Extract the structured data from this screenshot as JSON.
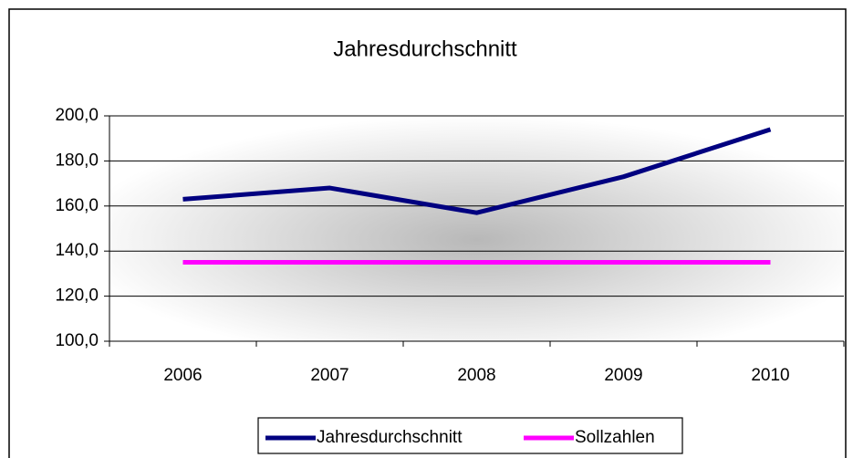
{
  "chart_data": {
    "type": "line",
    "title": "Jahresdurchschnitt",
    "categories": [
      "2006",
      "2007",
      "2008",
      "2009",
      "2010"
    ],
    "series": [
      {
        "name": "Jahresdurchschnitt",
        "color": "#000080",
        "values": [
          163,
          168,
          157,
          173,
          194
        ]
      },
      {
        "name": "Sollzahlen",
        "color": "#ff00ff",
        "values": [
          135,
          135,
          135,
          135,
          135
        ]
      }
    ],
    "ylim": [
      100,
      200
    ],
    "yticks": [
      {
        "value": 100,
        "label": "100,0"
      },
      {
        "value": 120,
        "label": "120,0"
      },
      {
        "value": 140,
        "label": "140,0"
      },
      {
        "value": 160,
        "label": "160,0"
      },
      {
        "value": 180,
        "label": "180,0"
      },
      {
        "value": 200,
        "label": "200,0"
      }
    ],
    "grid": true,
    "legend": "bottom"
  }
}
